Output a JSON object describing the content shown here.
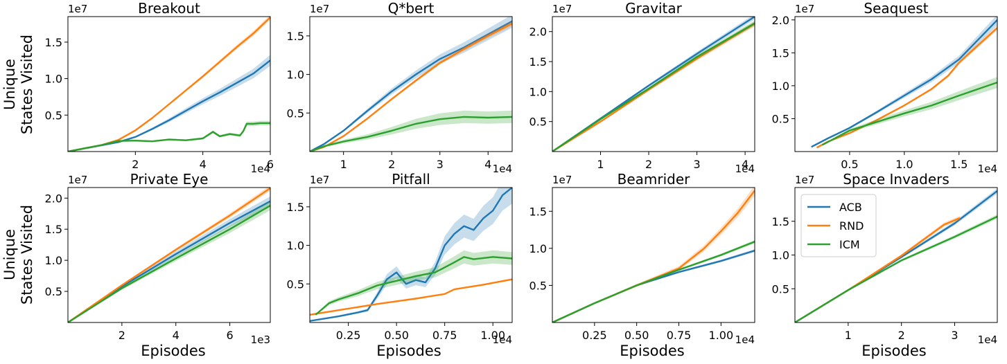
{
  "figure": {
    "row_ylabel": [
      "Unique",
      "States Visited"
    ],
    "xlabel": "Episodes",
    "legend": [
      {
        "name": "ACB",
        "color": "#1f77b4"
      },
      {
        "name": "RND",
        "color": "#ff7f0e"
      },
      {
        "name": "ICM",
        "color": "#2ca02c"
      }
    ]
  },
  "chart_data": [
    {
      "type": "line",
      "title": "Breakout",
      "xlim": [
        0,
        60000
      ],
      "ylim": [
        0,
        18500000
      ],
      "xticks": [
        20000,
        40000,
        60000
      ],
      "xtick_labels": [
        "2",
        "4",
        "6"
      ],
      "x_multiplier": "1e4",
      "yticks": [
        5000000,
        10000000,
        15000000
      ],
      "ytick_labels": [
        "0.5",
        "1.0",
        "1.5"
      ],
      "y_multiplier": "1e7",
      "series": [
        {
          "name": "ACB",
          "color": "#1f77b4",
          "band": 0.06,
          "x": [
            0,
            10000,
            15000,
            20000,
            25000,
            30000,
            35000,
            40000,
            45000,
            50000,
            55000,
            60000
          ],
          "y": [
            0,
            850000,
            1300000,
            2000000,
            3100000,
            4300000,
            5600000,
            6900000,
            8100000,
            9400000,
            10700000,
            12500000
          ]
        },
        {
          "name": "RND",
          "color": "#ff7f0e",
          "band": 0.02,
          "x": [
            0,
            10000,
            15000,
            20000,
            25000,
            30000,
            35000,
            40000,
            45000,
            50000,
            55000,
            60000
          ],
          "y": [
            0,
            900000,
            1600000,
            2900000,
            4600000,
            6500000,
            8400000,
            10300000,
            12300000,
            14300000,
            16200000,
            18400000
          ]
        },
        {
          "name": "ICM",
          "color": "#2ca02c",
          "band": 0.08,
          "x": [
            0,
            10000,
            15000,
            20000,
            25000,
            30000,
            35000,
            40000,
            43000,
            45000,
            48000,
            51000,
            52000,
            53000,
            55000,
            57000,
            60000
          ],
          "y": [
            0,
            900000,
            1450000,
            1500000,
            1400000,
            1650000,
            1550000,
            1800000,
            2700000,
            2100000,
            2400000,
            2200000,
            2800000,
            3800000,
            3800000,
            3900000,
            3900000
          ]
        }
      ]
    },
    {
      "type": "line",
      "title": "Q*bert",
      "xlim": [
        3000,
        45000
      ],
      "ylim": [
        0,
        17500000
      ],
      "xticks": [
        10000,
        20000,
        30000,
        40000
      ],
      "xtick_labels": [
        "1",
        "2",
        "3",
        "4"
      ],
      "x_multiplier": "1e4",
      "yticks": [
        5000000,
        10000000,
        15000000
      ],
      "ytick_labels": [
        "0.5",
        "1.0",
        "1.5"
      ],
      "y_multiplier": "1e7",
      "series": [
        {
          "name": "ACB",
          "color": "#1f77b4",
          "band": 0.05,
          "x": [
            3000,
            6000,
            10000,
            15000,
            20000,
            25000,
            30000,
            35000,
            40000,
            45000
          ],
          "y": [
            0,
            1000000,
            2700000,
            5300000,
            7800000,
            10000000,
            12000000,
            13500000,
            15200000,
            16900000
          ]
        },
        {
          "name": "RND",
          "color": "#ff7f0e",
          "band": 0.02,
          "x": [
            3000,
            6000,
            10000,
            15000,
            20000,
            25000,
            30000,
            35000,
            40000,
            45000
          ],
          "y": [
            0,
            600000,
            2000000,
            4300000,
            6800000,
            9200000,
            11500000,
            13300000,
            15000000,
            16600000
          ]
        },
        {
          "name": "ICM",
          "color": "#2ca02c",
          "band": 0.18,
          "x": [
            3000,
            6000,
            10000,
            15000,
            20000,
            25000,
            30000,
            35000,
            40000,
            45000
          ],
          "y": [
            0,
            700000,
            1300000,
            1900000,
            2700000,
            3600000,
            4200000,
            4500000,
            4400000,
            4500000
          ]
        }
      ]
    },
    {
      "type": "line",
      "title": "Gravitar",
      "xlim": [
        0,
        42000
      ],
      "ylim": [
        0,
        22500000
      ],
      "xticks": [
        10000,
        20000,
        30000,
        40000
      ],
      "xtick_labels": [
        "1",
        "2",
        "3",
        "4"
      ],
      "x_multiplier": "1e4",
      "yticks": [
        5000000,
        10000000,
        15000000,
        20000000
      ],
      "ytick_labels": [
        "0.5",
        "1.0",
        "1.5",
        "2.0"
      ],
      "y_multiplier": "1e7",
      "series": [
        {
          "name": "ACB",
          "color": "#1f77b4",
          "band": 0.02,
          "x": [
            0,
            10000,
            20000,
            30000,
            42000
          ],
          "y": [
            0,
            5500000,
            11000000,
            16300000,
            22500000
          ]
        },
        {
          "name": "RND",
          "color": "#ff7f0e",
          "band": 0.02,
          "x": [
            0,
            10000,
            20000,
            30000,
            42000
          ],
          "y": [
            0,
            5000000,
            10300000,
            15500000,
            21300000
          ]
        },
        {
          "name": "ICM",
          "color": "#2ca02c",
          "band": 0.02,
          "x": [
            0,
            10000,
            20000,
            30000,
            42000
          ],
          "y": [
            0,
            5400000,
            10500000,
            15800000,
            21400000
          ]
        }
      ]
    },
    {
      "type": "line",
      "title": "Seaquest",
      "xlim": [
        0,
        18500
      ],
      "ylim": [
        0,
        20500000
      ],
      "xticks": [
        5000,
        10000,
        15000
      ],
      "xtick_labels": [
        "0.5",
        "1.0",
        "1.5"
      ],
      "x_multiplier": "1e4",
      "yticks": [
        5000000,
        10000000,
        15000000,
        20000000
      ],
      "ytick_labels": [
        "0.5",
        "1.0",
        "1.5",
        "2.0"
      ],
      "y_multiplier": "1e7",
      "series": [
        {
          "name": "ACB",
          "color": "#1f77b4",
          "band": 0.04,
          "x": [
            1500,
            3000,
            5000,
            7500,
            10000,
            12500,
            15000,
            18500
          ],
          "y": [
            700000,
            2000000,
            3600000,
            6000000,
            8500000,
            11000000,
            14000000,
            20000000
          ]
        },
        {
          "name": "RND",
          "color": "#ff7f0e",
          "band": 0.02,
          "x": [
            2000,
            3000,
            5000,
            7500,
            10000,
            12500,
            14000,
            15000,
            18500
          ],
          "y": [
            600000,
            1500000,
            2800000,
            4800000,
            7000000,
            9500000,
            11500000,
            13500000,
            18800000
          ]
        },
        {
          "name": "ICM",
          "color": "#2ca02c",
          "band": 0.08,
          "x": [
            2500,
            5000,
            7500,
            10000,
            12500,
            15000,
            18500
          ],
          "y": [
            1000000,
            3200000,
            4500000,
            5800000,
            7000000,
            8500000,
            10500000
          ]
        }
      ]
    },
    {
      "type": "line",
      "title": "Private Eye",
      "xlim": [
        0,
        7500
      ],
      "ylim": [
        0,
        21700000
      ],
      "xticks": [
        2000,
        4000,
        6000
      ],
      "xtick_labels": [
        "2",
        "4",
        "6"
      ],
      "x_multiplier": "1e3",
      "yticks": [
        5000000,
        10000000,
        15000000,
        20000000
      ],
      "ytick_labels": [
        "0.5",
        "1.0",
        "1.5",
        "2.0"
      ],
      "y_multiplier": "1e7",
      "series": [
        {
          "name": "ACB",
          "color": "#1f77b4",
          "band": 0.04,
          "x": [
            0,
            2000,
            4000,
            6000,
            7500
          ],
          "y": [
            0,
            5800000,
            11000000,
            16000000,
            19500000
          ]
        },
        {
          "name": "RND",
          "color": "#ff7f0e",
          "band": 0.02,
          "x": [
            0,
            2000,
            4000,
            6000,
            7500
          ],
          "y": [
            0,
            6000000,
            11700000,
            17200000,
            21600000
          ]
        },
        {
          "name": "ICM",
          "color": "#2ca02c",
          "band": 0.04,
          "x": [
            0,
            2000,
            4000,
            6000,
            7500
          ],
          "y": [
            0,
            5500000,
            10300000,
            15000000,
            18800000
          ]
        }
      ]
    },
    {
      "type": "line",
      "title": "Pitfall",
      "xlim": [
        500,
        11000
      ],
      "ylim": [
        0,
        17500000
      ],
      "xticks": [
        2500,
        5000,
        7500,
        10000
      ],
      "xtick_labels": [
        "0.25",
        "0.50",
        "0.75",
        "1.00"
      ],
      "x_multiplier": "1e4",
      "yticks": [
        5000000,
        10000000,
        15000000
      ],
      "ytick_labels": [
        "0.5",
        "1.0",
        "1.5"
      ],
      "y_multiplier": "1e7",
      "series": [
        {
          "name": "ACB",
          "color": "#1f77b4",
          "band": 0.12,
          "x": [
            500,
            2000,
            3000,
            3500,
            4000,
            4500,
            5000,
            5500,
            6000,
            6500,
            7000,
            7500,
            8000,
            8500,
            9000,
            9500,
            10000,
            10500,
            11000
          ],
          "y": [
            200000,
            800000,
            1300000,
            1600000,
            3500000,
            5600000,
            6500000,
            5000000,
            5500000,
            5200000,
            7000000,
            10000000,
            11500000,
            12500000,
            12000000,
            13500000,
            14500000,
            16500000,
            17500000
          ]
        },
        {
          "name": "RND",
          "color": "#ff7f0e",
          "band": 0.02,
          "x": [
            500,
            2000,
            4000,
            6000,
            7500,
            8000,
            9500,
            11000
          ],
          "y": [
            1000000,
            1600000,
            2400000,
            3100000,
            3700000,
            4300000,
            4900000,
            5600000
          ]
        },
        {
          "name": "ICM",
          "color": "#2ca02c",
          "band": 0.1,
          "x": [
            800,
            1500,
            2000,
            3000,
            4000,
            5000,
            6000,
            7000,
            8000,
            8500,
            9000,
            10000,
            11000
          ],
          "y": [
            1000000,
            2500000,
            3000000,
            3800000,
            4800000,
            5400000,
            6000000,
            6500000,
            7800000,
            8500000,
            8200000,
            8500000,
            8300000
          ]
        }
      ]
    },
    {
      "type": "line",
      "title": "Beamrider",
      "xlim": [
        0,
        12000
      ],
      "ylim": [
        0,
        18200000
      ],
      "xticks": [
        2500,
        5000,
        7500,
        10000
      ],
      "xtick_labels": [
        "0.25",
        "0.50",
        "0.75",
        "1.00"
      ],
      "x_multiplier": "1e4",
      "yticks": [
        5000000,
        10000000,
        15000000
      ],
      "ytick_labels": [
        "0.5",
        "1.0",
        "1.5"
      ],
      "y_multiplier": "1e7",
      "series": [
        {
          "name": "ACB",
          "color": "#1f77b4",
          "band": 0.02,
          "x": [
            0,
            2500,
            5000,
            7500,
            10000,
            12000
          ],
          "y": [
            0,
            2600000,
            5000000,
            6800000,
            8300000,
            9700000
          ]
        },
        {
          "name": "RND",
          "color": "#ff7f0e",
          "band": 0.04,
          "x": [
            0,
            2500,
            5000,
            7500,
            9000,
            10000,
            11000,
            12000
          ],
          "y": [
            0,
            2600000,
            5000000,
            7300000,
            10000000,
            12300000,
            14800000,
            17800000
          ]
        },
        {
          "name": "ICM",
          "color": "#2ca02c",
          "band": 0.02,
          "x": [
            0,
            2500,
            5000,
            7500,
            10000,
            12000
          ],
          "y": [
            0,
            2600000,
            5000000,
            7100000,
            9100000,
            10900000
          ]
        }
      ]
    },
    {
      "type": "line",
      "title": "Space Invaders",
      "xlim": [
        0,
        38000
      ],
      "ylim": [
        0,
        20000000
      ],
      "xticks": [
        10000,
        20000,
        30000
      ],
      "xtick_labels": [
        "1",
        "2",
        "3"
      ],
      "x_multiplier": "1e4",
      "yticks": [
        5000000,
        10000000,
        15000000
      ],
      "ytick_labels": [
        "0.5",
        "1.0",
        "1.5"
      ],
      "y_multiplier": "1e7",
      "legend": "top-left",
      "series": [
        {
          "name": "ACB",
          "color": "#1f77b4",
          "band": 0.02,
          "x": [
            0,
            10000,
            20000,
            30000,
            38000
          ],
          "y": [
            0,
            4800000,
            9700000,
            14700000,
            19500000
          ]
        },
        {
          "name": "RND",
          "color": "#ff7f0e",
          "band": 0.02,
          "x": [
            0,
            10000,
            20000,
            28000,
            31000
          ],
          "y": [
            0,
            4800000,
            9900000,
            14500000,
            15500000
          ]
        },
        {
          "name": "ICM",
          "color": "#2ca02c",
          "band": 0.02,
          "x": [
            0,
            10000,
            20000,
            30000,
            38000
          ],
          "y": [
            0,
            4800000,
            9200000,
            12700000,
            15700000
          ]
        }
      ]
    }
  ]
}
